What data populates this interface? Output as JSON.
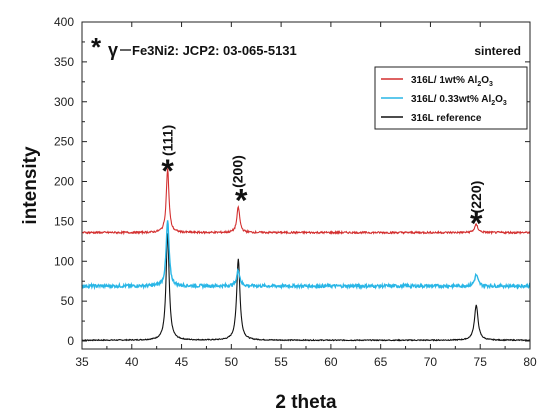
{
  "chart_data": {
    "type": "line",
    "title": "",
    "xlabel": "2 theta",
    "ylabel": "intensity",
    "xlim": [
      35,
      80
    ],
    "ylim": [
      -10,
      400
    ],
    "x_ticks": [
      "35",
      "40",
      "45",
      "50",
      "55",
      "60",
      "65",
      "70",
      "75",
      "80"
    ],
    "y_ticks": [
      "0",
      "50",
      "100",
      "150",
      "200",
      "250",
      "300",
      "350",
      "400"
    ],
    "grid": false,
    "legend_position": "top-right",
    "annotation": {
      "marker": "*",
      "gamma": "γ",
      "text": "Fe3Ni2: JCP2: 03-065-5131"
    },
    "condition_label": "sintered",
    "peak_labels": [
      {
        "label": "(111)",
        "x": 43.6,
        "y": 232
      },
      {
        "label": "(200)",
        "x": 50.6,
        "y": 192
      },
      {
        "label": "(220)",
        "x": 74.6,
        "y": 160
      }
    ],
    "peak_markers": [
      {
        "x": 43.6,
        "y": 222
      },
      {
        "x": 51.0,
        "y": 185
      },
      {
        "x": 74.6,
        "y": 156
      }
    ],
    "series": [
      {
        "name": "316L/ 1wt% Al2O3",
        "legend_main": "316L/ 1wt% Al",
        "legend_sub": "2",
        "legend_tail": "O",
        "legend_sub2": "3",
        "color": "#d32f2f",
        "baseline": 136,
        "noise": 1.2,
        "peaks": [
          {
            "x": 43.6,
            "height": 80,
            "width": 0.28
          },
          {
            "x": 50.7,
            "height": 32,
            "width": 0.3
          },
          {
            "x": 74.6,
            "height": 10,
            "width": 0.35
          }
        ]
      },
      {
        "name": "316L/ 0.33wt% Al2O3",
        "legend_main": "316L/ 0.33wt% Al",
        "legend_sub": "2",
        "legend_tail": "O",
        "legend_sub2": "3",
        "color": "#29b6e6",
        "baseline": 69,
        "noise": 2.0,
        "peaks": [
          {
            "x": 43.6,
            "height": 82,
            "width": 0.3
          },
          {
            "x": 50.7,
            "height": 20,
            "width": 0.32
          },
          {
            "x": 74.6,
            "height": 14,
            "width": 0.35
          }
        ]
      },
      {
        "name": "316L reference",
        "legend_main": "316L reference",
        "color": "#111111",
        "baseline": 1,
        "noise": 0.6,
        "peaks": [
          {
            "x": 43.6,
            "height": 134,
            "width": 0.32
          },
          {
            "x": 50.7,
            "height": 102,
            "width": 0.34
          },
          {
            "x": 74.6,
            "height": 44,
            "width": 0.38
          }
        ]
      }
    ]
  }
}
